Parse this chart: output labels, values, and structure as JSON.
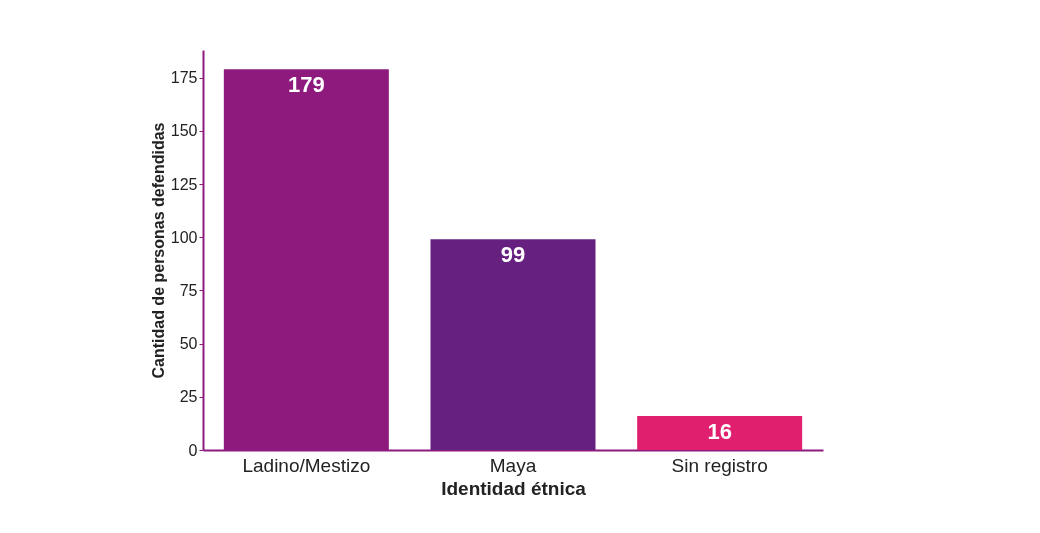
{
  "chart_data": {
    "type": "bar",
    "xlabel": "Identidad étnica",
    "ylabel": "Cantidad de personas defendidas",
    "categories": [
      "Ladino/Mestizo",
      "Maya",
      "Sin registro"
    ],
    "values": [
      179,
      99,
      16
    ],
    "colors": [
      "#8e1a7e",
      "#66207f",
      "#e0206f"
    ],
    "ylim": [
      0,
      188
    ],
    "yticks": [
      0,
      25,
      50,
      75,
      100,
      125,
      150,
      175
    ],
    "grid": false,
    "data_labels": true
  }
}
